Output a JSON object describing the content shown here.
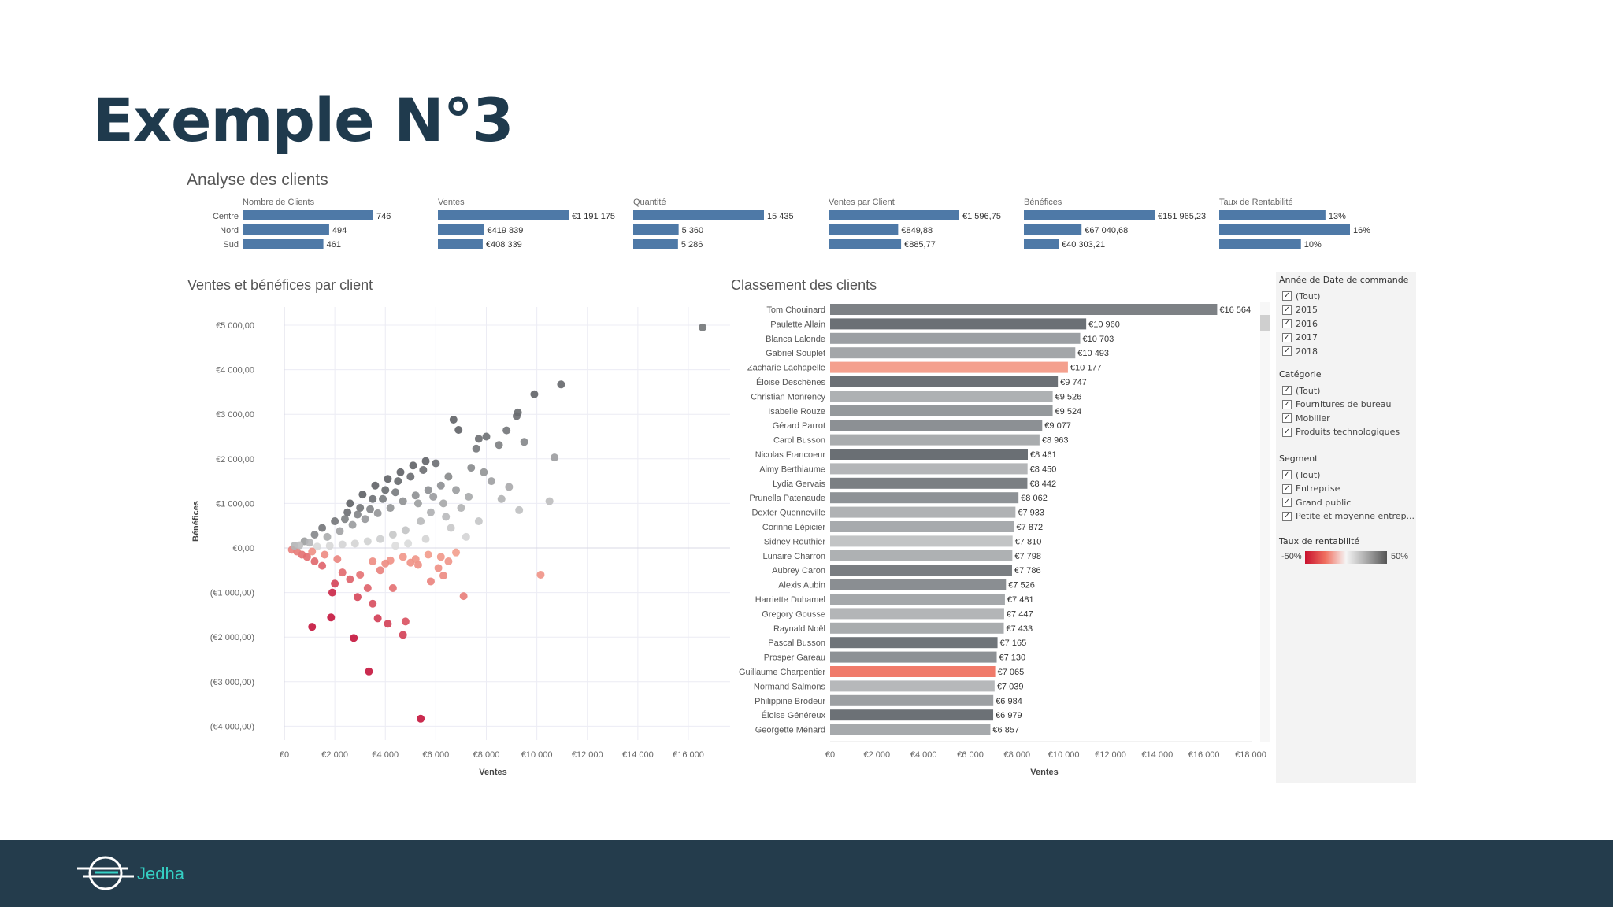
{
  "slide": {
    "title": "Exemple N°3",
    "brand": "Jedha"
  },
  "colors": {
    "accent_blue": "#4e79a7",
    "title_color": "#1f3a4d",
    "footer_bg": "#243c4c",
    "brand_teal": "#35d0c4",
    "highlight": "#f4a08e",
    "highlight_strong": "#f07a6a"
  },
  "kpi": {
    "section_title": "Analyse des clients",
    "regions": [
      "Centre",
      "Nord",
      "Sud"
    ],
    "metrics": [
      {
        "label": "Nombre de Clients",
        "values": [
          746,
          494,
          461
        ],
        "display": [
          "746",
          "494",
          "461"
        ]
      },
      {
        "label": "Ventes",
        "values": [
          1191175,
          419839,
          408339
        ],
        "display": [
          "€1 191 175",
          "€419 839",
          "€408 339"
        ]
      },
      {
        "label": "Quantité",
        "values": [
          15435,
          5360,
          5286
        ],
        "display": [
          "15 435",
          "5 360",
          "5 286"
        ]
      },
      {
        "label": "Ventes par Client",
        "values": [
          1596.75,
          849.88,
          885.77
        ],
        "display": [
          "€1 596,75",
          "€849,88",
          "€885,77"
        ]
      },
      {
        "label": "Bénéfices",
        "values": [
          151965.23,
          67040.68,
          40303.21
        ],
        "display": [
          "€151 965,23",
          "€67 040,68",
          "€40 303,21"
        ]
      },
      {
        "label": "Taux de Rentabilité",
        "values": [
          13,
          16,
          10
        ],
        "display": [
          "13%",
          "16%",
          "10%"
        ]
      }
    ]
  },
  "chart_data": [
    {
      "type": "scatter",
      "title": "Ventes et bénéfices par client",
      "xlabel": "Ventes",
      "ylabel": "Bénéfices",
      "xlim": [
        0,
        17000
      ],
      "ylim": [
        -4300,
        5300
      ],
      "x_ticks": [
        0,
        2000,
        4000,
        6000,
        8000,
        10000,
        12000,
        14000,
        16000
      ],
      "x_tick_labels": [
        "€0",
        "€2 000",
        "€4 000",
        "€6 000",
        "€8 000",
        "€10 000",
        "€12 000",
        "€14 000",
        "€16 000"
      ],
      "y_ticks": [
        5000,
        4000,
        3000,
        2000,
        1000,
        0,
        -1000,
        -2000,
        -3000,
        -4000
      ],
      "y_tick_labels": [
        "€5 000,00",
        "€4 000,00",
        "€3 000,00",
        "€2 000,00",
        "€1 000,00",
        "€0,00",
        "(€1 000,00)",
        "(€2 000,00)",
        "(€3 000,00)",
        "(€4 000,00)"
      ],
      "points": [
        [
          16564,
          4950
        ],
        [
          10960,
          3670
        ],
        [
          10700,
          2030
        ],
        [
          10500,
          1050
        ],
        [
          9900,
          3450
        ],
        [
          9500,
          2380
        ],
        [
          9250,
          3040
        ],
        [
          9200,
          2960
        ],
        [
          8800,
          2640
        ],
        [
          8500,
          2310
        ],
        [
          8000,
          2500
        ],
        [
          7700,
          2450
        ],
        [
          7600,
          2230
        ],
        [
          6700,
          2880
        ],
        [
          6900,
          2650
        ],
        [
          8900,
          1370
        ],
        [
          9300,
          850
        ],
        [
          7900,
          1700
        ],
        [
          7300,
          1150
        ],
        [
          7700,
          600
        ],
        [
          10150,
          -600
        ],
        [
          7100,
          -1080
        ],
        [
          6500,
          -300
        ],
        [
          6300,
          -620
        ],
        [
          5300,
          -380
        ],
        [
          5000,
          -330
        ],
        [
          4200,
          -280
        ],
        [
          5400,
          -3830
        ],
        [
          4800,
          -1650
        ],
        [
          4700,
          -1950
        ],
        [
          4100,
          -1700
        ],
        [
          3700,
          -1580
        ],
        [
          3350,
          -2770
        ],
        [
          2750,
          -2020
        ],
        [
          1100,
          -1770
        ],
        [
          1850,
          -1560
        ],
        [
          3500,
          -1250
        ],
        [
          3300,
          -900
        ],
        [
          2900,
          -1100
        ],
        [
          2600,
          -700
        ],
        [
          3000,
          -600
        ],
        [
          3800,
          -500
        ],
        [
          4300,
          -900
        ],
        [
          5800,
          -750
        ],
        [
          6100,
          -450
        ],
        [
          1900,
          -1000
        ],
        [
          2000,
          -800
        ],
        [
          2300,
          -550
        ],
        [
          1500,
          -400
        ],
        [
          1200,
          -300
        ],
        [
          900,
          -200
        ],
        [
          700,
          -150
        ],
        [
          500,
          -80
        ],
        [
          300,
          -40
        ],
        [
          400,
          50
        ],
        [
          800,
          150
        ],
        [
          1200,
          300
        ],
        [
          1500,
          450
        ],
        [
          2000,
          600
        ],
        [
          2500,
          800
        ],
        [
          3000,
          900
        ],
        [
          3500,
          1100
        ],
        [
          4000,
          1300
        ],
        [
          4500,
          1500
        ],
        [
          5000,
          1600
        ],
        [
          5500,
          1750
        ],
        [
          6000,
          1900
        ],
        [
          6500,
          1600
        ],
        [
          6800,
          1300
        ],
        [
          6300,
          1000
        ],
        [
          5800,
          800
        ],
        [
          5400,
          600
        ],
        [
          4800,
          400
        ],
        [
          4300,
          300
        ],
        [
          3800,
          200
        ],
        [
          3300,
          150
        ],
        [
          2800,
          100
        ],
        [
          2300,
          80
        ],
        [
          1800,
          50
        ],
        [
          1300,
          30
        ],
        [
          600,
          60
        ],
        [
          1000,
          120
        ],
        [
          1700,
          250
        ],
        [
          2200,
          380
        ],
        [
          2700,
          520
        ],
        [
          3200,
          650
        ],
        [
          3700,
          780
        ],
        [
          4200,
          900
        ],
        [
          4700,
          1050
        ],
        [
          5200,
          1180
        ],
        [
          5700,
          1300
        ],
        [
          6200,
          1400
        ],
        [
          3900,
          1100
        ],
        [
          4400,
          1250
        ],
        [
          2600,
          1000
        ],
        [
          3100,
          1200
        ],
        [
          3600,
          1400
        ],
        [
          4100,
          1550
        ],
        [
          4600,
          1700
        ],
        [
          5100,
          1850
        ],
        [
          5600,
          1950
        ],
        [
          2400,
          650
        ],
        [
          2900,
          750
        ],
        [
          3400,
          870
        ],
        [
          5300,
          1000
        ],
        [
          5900,
          1150
        ],
        [
          6400,
          700
        ],
        [
          7000,
          900
        ],
        [
          7400,
          1800
        ],
        [
          8200,
          1500
        ],
        [
          8600,
          1100
        ],
        [
          6600,
          450
        ],
        [
          7200,
          250
        ],
        [
          5600,
          200
        ],
        [
          4900,
          100
        ],
        [
          4400,
          50
        ],
        [
          6800,
          -100
        ],
        [
          6200,
          -200
        ],
        [
          5700,
          -150
        ],
        [
          5200,
          -250
        ],
        [
          4700,
          -200
        ],
        [
          4000,
          -350
        ],
        [
          3500,
          -300
        ],
        [
          2100,
          -250
        ],
        [
          1600,
          -150
        ],
        [
          1100,
          -80
        ]
      ]
    },
    {
      "type": "bar",
      "orientation": "horizontal",
      "title": "Classement des clients",
      "xlabel": "Ventes",
      "xlim": [
        0,
        18000
      ],
      "x_ticks": [
        0,
        2000,
        4000,
        6000,
        8000,
        10000,
        12000,
        14000,
        16000,
        18000
      ],
      "x_tick_labels": [
        "€0",
        "€2 000",
        "€4 000",
        "€6 000",
        "€8 000",
        "€10 000",
        "€12 000",
        "€14 000",
        "€16 000",
        "€18 000"
      ],
      "categories": [
        "Tom Chouinard",
        "Paulette Allain",
        "Blanca Lalonde",
        "Gabriel Souplet",
        "Zacharie Lachapelle",
        "Éloise Deschênes",
        "Christian Monrency",
        "Isabelle Rouze",
        "Gérard Parrot",
        "Carol Busson",
        "Nicolas Francoeur",
        "Aimy Berthiaume",
        "Lydia Gervais",
        "Prunella Patenaude",
        "Dexter Quenneville",
        "Corinne Lépicier",
        "Sidney Routhier",
        "Lunaire Charron",
        "Aubrey Caron",
        "Alexis Aubin",
        "Harriette Duhamel",
        "Gregory Gousse",
        "Raynald Noël",
        "Pascal Busson",
        "Prosper Gareau",
        "Guillaume Charpentier",
        "Normand Salmons",
        "Philippine Brodeur",
        "Éloise Généreux",
        "Georgette Ménard"
      ],
      "values": [
        16564,
        10960,
        10703,
        10493,
        10177,
        9747,
        9526,
        9524,
        9077,
        8963,
        8461,
        8450,
        8442,
        8062,
        7933,
        7872,
        7810,
        7798,
        7786,
        7526,
        7481,
        7447,
        7433,
        7165,
        7130,
        7065,
        7039,
        6984,
        6979,
        6857
      ],
      "labels": [
        "€16 564",
        "€10 960",
        "€10 703",
        "€10 493",
        "€10 177",
        "€9 747",
        "€9 526",
        "€9 524",
        "€9 077",
        "€8 963",
        "€8 461",
        "€8 450",
        "€8 442",
        "€8 062",
        "€7 933",
        "€7 872",
        "€7 810",
        "€7 798",
        "€7 786",
        "€7 526",
        "€7 481",
        "€7 447",
        "€7 433",
        "€7 165",
        "€7 130",
        "€7 065",
        "€7 039",
        "€6 984",
        "€6 979",
        "€6 857"
      ],
      "bar_colors": [
        "#7d8185",
        "#6b7075",
        "#9b9fa3",
        "#a3a6a9",
        "#f4a08e",
        "#6b7075",
        "#aeb1b3",
        "#95999c",
        "#8c9094",
        "#a9acae",
        "#6a6f74",
        "#b4b6b8",
        "#7b7f83",
        "#8e9296",
        "#b0b2b4",
        "#a7aaad",
        "#c2c4c5",
        "#aeb1b3",
        "#7a7e82",
        "#8a8e92",
        "#a5a8ab",
        "#b3b5b7",
        "#a9acae",
        "#6f7479",
        "#8d9195",
        "#f07a6a",
        "#b6b8ba",
        "#9da0a3",
        "#6c7176",
        "#a6a9ac"
      ]
    }
  ],
  "filters": {
    "year": {
      "title": "Année de Date de commande",
      "items": [
        "(Tout)",
        "2015",
        "2016",
        "2017",
        "2018"
      ]
    },
    "category": {
      "title": "Catégorie",
      "items": [
        "(Tout)",
        "Fournitures de bureau",
        "Mobilier",
        "Produits technologiques"
      ]
    },
    "segment": {
      "title": "Segment",
      "items": [
        "(Tout)",
        "Entreprise",
        "Grand public",
        "Petite et moyenne entrep..."
      ]
    },
    "rate": {
      "title": "Taux de rentabilité",
      "min_label": "-50%",
      "max_label": "50%"
    }
  }
}
